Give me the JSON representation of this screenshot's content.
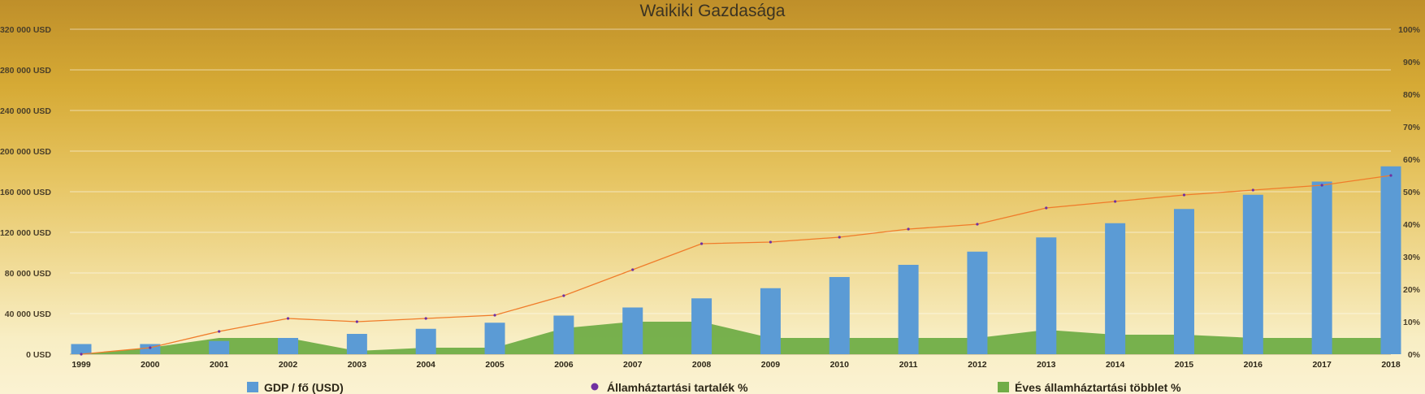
{
  "chart_data": {
    "type": "bar",
    "title": "Waikiki Gazdasága",
    "categories": [
      "1999",
      "2000",
      "2001",
      "2002",
      "2003",
      "2004",
      "2005",
      "2006",
      "2007",
      "2008",
      "2009",
      "2010",
      "2011",
      "2012",
      "2013",
      "2014",
      "2015",
      "2016",
      "2017",
      "2018"
    ],
    "left_axis": {
      "ylim": [
        0,
        320000
      ],
      "ticks": [
        0,
        40000,
        80000,
        120000,
        160000,
        200000,
        240000,
        280000,
        320000
      ],
      "tick_labels": [
        "0 USD",
        "40 000 USD",
        "80 000 USD",
        "120 000 USD",
        "160 000 USD",
        "200 000 USD",
        "240 000 USD",
        "280 000 USD",
        "320 000 USD"
      ]
    },
    "right_axis": {
      "ylim": [
        0,
        100
      ],
      "ticks": [
        0,
        10,
        20,
        30,
        40,
        50,
        60,
        70,
        80,
        90,
        100
      ],
      "tick_labels": [
        "0%",
        "10%",
        "20%",
        "30%",
        "40%",
        "50%",
        "60%",
        "70%",
        "80%",
        "90%",
        "100%"
      ]
    },
    "grid": true,
    "legend_position": "bottom",
    "series": [
      {
        "name": "GDP / fő (USD)",
        "type": "bar",
        "axis": "left",
        "color": "#5b9bd5",
        "values": [
          10000,
          10000,
          13000,
          16000,
          20000,
          25000,
          31000,
          38000,
          46000,
          55000,
          65000,
          76000,
          88000,
          101000,
          115000,
          129000,
          143000,
          157000,
          170000,
          185000
        ]
      },
      {
        "name": "Államháztartási tartalék %",
        "type": "line",
        "axis": "right",
        "color": "#f07c2a",
        "marker_color": "#7030a0",
        "values": [
          0,
          2,
          7,
          11,
          10,
          11,
          12,
          18,
          26,
          34,
          34.5,
          36,
          38.5,
          40,
          45,
          47,
          49,
          50.5,
          52,
          55
        ]
      },
      {
        "name": "Éves államháztartási többlet %",
        "type": "area",
        "axis": "right",
        "color": "#70ad47",
        "values": [
          0,
          2,
          5,
          5,
          1,
          2,
          2,
          8,
          10,
          10,
          5,
          5,
          5,
          5,
          7.5,
          6,
          6,
          5,
          5,
          5
        ]
      }
    ]
  }
}
